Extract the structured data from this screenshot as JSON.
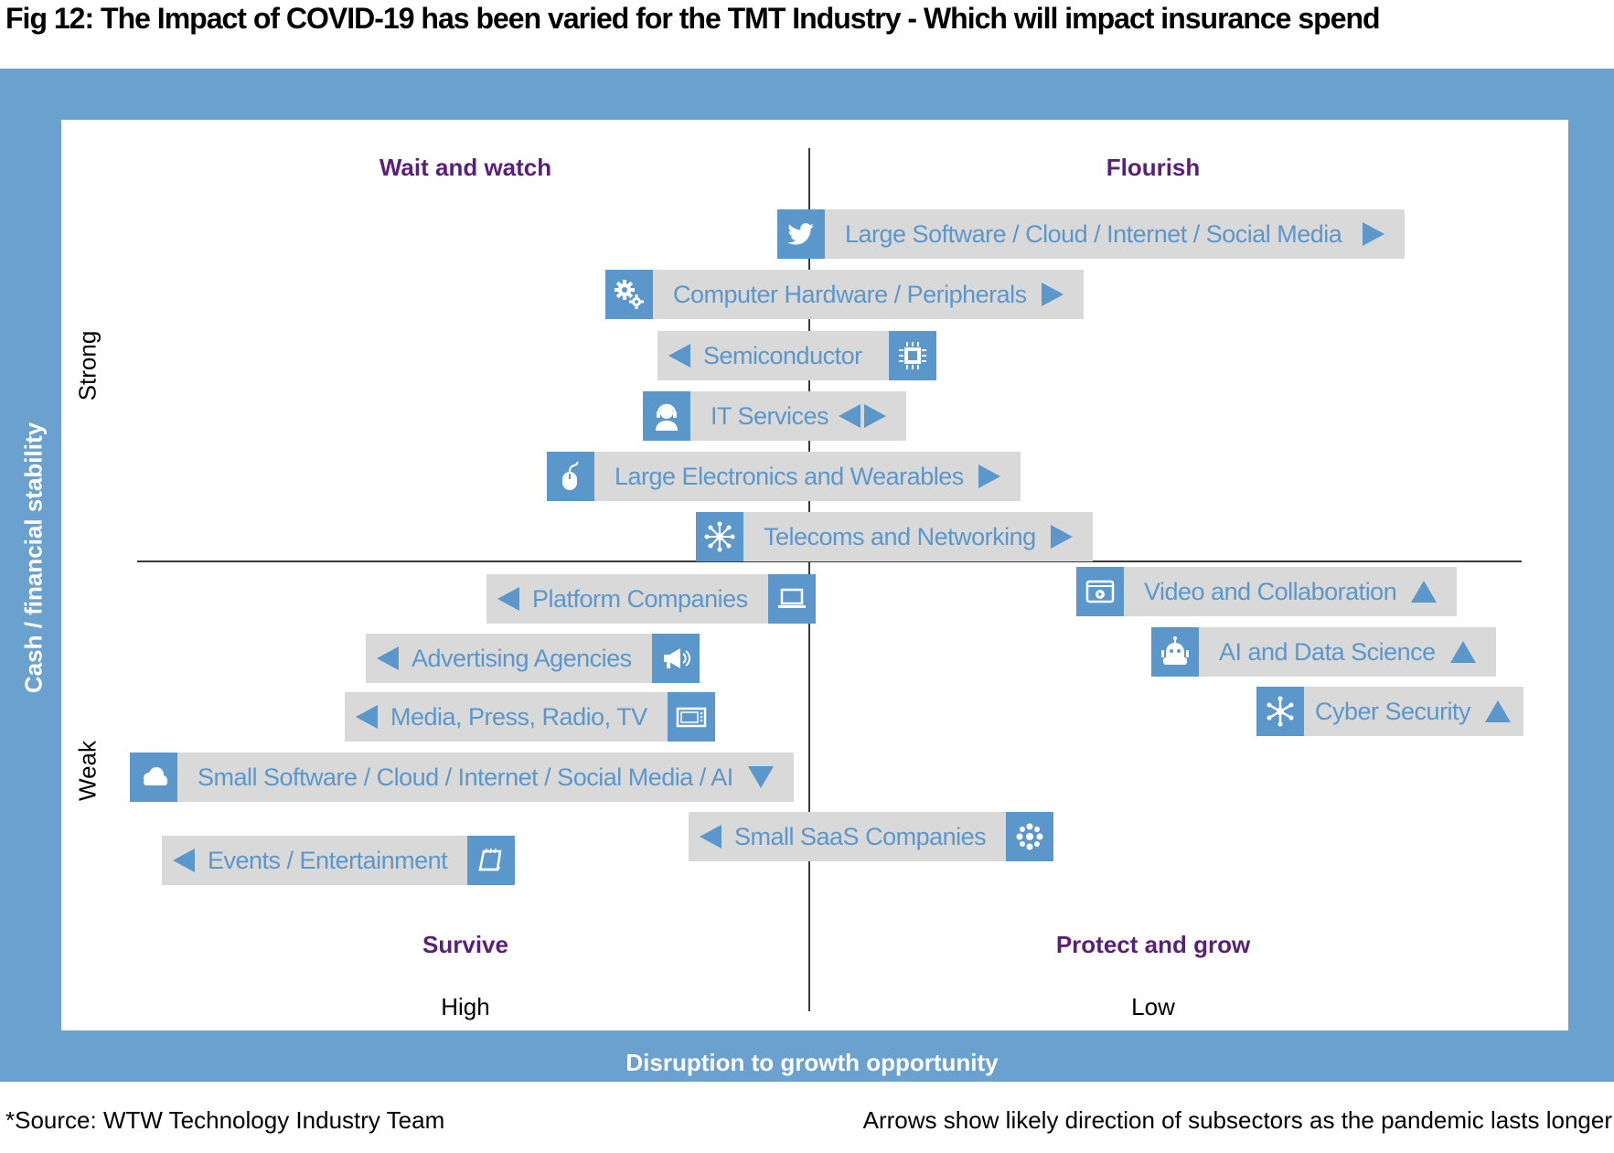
{
  "title": "Fig 12: The Impact of COVID-19 has been varied for the TMT Industry - Which will impact insurance spend",
  "quadrants": {
    "top_left": "Wait and watch",
    "top_right": "Flourish",
    "bottom_left": "Survive",
    "bottom_right": "Protect and grow"
  },
  "axes": {
    "y_title": "Cash / financial stability",
    "y_high": "Strong",
    "y_low": "Weak",
    "x_title": "Disruption to growth opportunity",
    "x_high": "High",
    "x_low": "Low"
  },
  "items": [
    {
      "label": "Large Software / Cloud / Internet / Social Media",
      "icon": "bird-icon",
      "arrow": "right"
    },
    {
      "label": "Computer Hardware / Peripherals",
      "icon": "gears-icon",
      "arrow": "right"
    },
    {
      "label": "Semiconductor",
      "icon": "chip-icon",
      "arrow": "left"
    },
    {
      "label": "IT Services",
      "icon": "headset-icon",
      "arrow": "left-right"
    },
    {
      "label": "Large Electronics and Wearables",
      "icon": "mouse-icon",
      "arrow": "right"
    },
    {
      "label": "Telecoms and Networking",
      "icon": "network-icon",
      "arrow": "right"
    },
    {
      "label": "Platform Companies",
      "icon": "laptop-icon",
      "arrow": "left"
    },
    {
      "label": "Advertising Agencies",
      "icon": "megaphone-icon",
      "arrow": "left"
    },
    {
      "label": "Media, Press, Radio, TV",
      "icon": "tv-icon",
      "arrow": "left"
    },
    {
      "label": "Small Software / Cloud / Internet / Social Media / AI",
      "icon": "cloud-icon",
      "arrow": "down"
    },
    {
      "label": "Events / Entertainment",
      "icon": "notepad-icon",
      "arrow": "left"
    },
    {
      "label": "Small SaaS Companies",
      "icon": "cluster-icon",
      "arrow": "left"
    },
    {
      "label": "Video and Collaboration",
      "icon": "video-icon",
      "arrow": "up"
    },
    {
      "label": "AI and Data Science",
      "icon": "robot-icon",
      "arrow": "up"
    },
    {
      "label": "Cyber Security",
      "icon": "snowflake-icon",
      "arrow": "up"
    }
  ],
  "footer": {
    "source": "*Source: WTW Technology Industry Team",
    "note": "Arrows show likely direction of subsectors as the pandemic lasts longer"
  },
  "colors": {
    "frame": "#6aa1cf",
    "icon_bg": "#5c97cc",
    "label_bg": "#d9d9d9",
    "label_text": "#5c97cc",
    "quadrant_text": "#5a1f78"
  }
}
